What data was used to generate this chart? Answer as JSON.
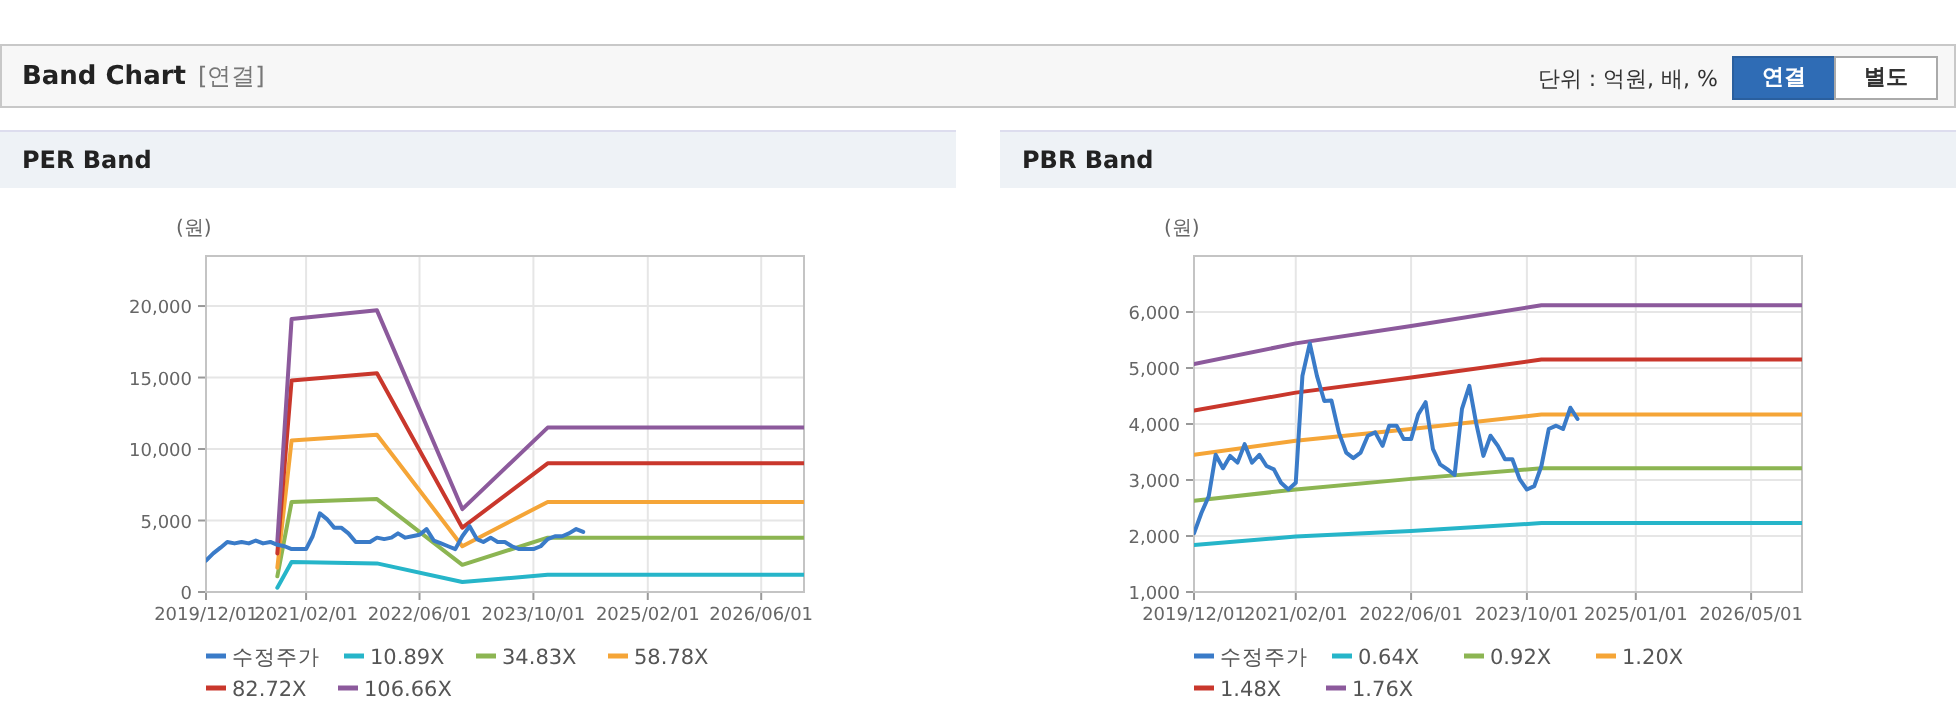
{
  "chart_data": [
    {
      "type": "other",
      "title": "Band Chart",
      "annotations": [
        "[연결]",
        "단위 : 억원, 배, %",
        "연결",
        "별도"
      ]
    },
    {
      "type": "line",
      "title": "PER Band",
      "ylabel": "(원)",
      "grid": true,
      "legend": "bottom",
      "marker": "none",
      "line_style": "solid",
      "xlim": [
        "2019-12-01",
        "2026-12-01"
      ],
      "xticks": [
        {
          "value": "2019-12-01",
          "label": "2019/12/01"
        },
        {
          "value": "2021-02-01",
          "label": "2021/02/01"
        },
        {
          "value": "2022-06-01",
          "label": "2022/06/01"
        },
        {
          "value": "2023-10-01",
          "label": "2023/10/01"
        },
        {
          "value": "2025-02-01",
          "label": "2025/02/01"
        },
        {
          "value": "2026-06-01",
          "label": "2026/06/01"
        }
      ],
      "ylim": [
        0,
        23500
      ],
      "yticks": [
        0,
        {
          "value": 5000,
          "label": "5,000"
        },
        {
          "value": 10000,
          "label": "10,000"
        },
        {
          "value": 15000,
          "label": "15,000"
        },
        {
          "value": 20000,
          "label": "20,000"
        }
      ],
      "x": [
        "2019-12",
        "2020-01",
        "2020-02",
        "2020-03",
        "2020-04",
        "2020-05",
        "2020-06",
        "2020-07",
        "2020-08",
        "2020-09",
        "2020-10",
        "2020-11",
        "2020-12",
        "2021-01",
        "2021-02",
        "2021-03",
        "2021-04",
        "2021-05",
        "2021-06",
        "2021-07",
        "2021-08",
        "2021-09",
        "2021-10",
        "2021-11",
        "2021-12",
        "2022-01",
        "2022-02",
        "2022-03",
        "2022-04",
        "2022-05",
        "2022-06",
        "2022-07",
        "2022-08",
        "2022-09",
        "2022-10",
        "2022-11",
        "2022-12",
        "2023-01",
        "2023-02",
        "2023-03",
        "2023-04",
        "2023-05",
        "2023-06",
        "2023-07",
        "2023-08",
        "2023-09",
        "2023-10",
        "2023-11",
        "2023-12",
        "2024-01",
        "2024-02",
        "2024-03",
        "2024-04",
        "2024-05"
      ],
      "series": [
        {
          "name": "수정주가",
          "color": "#3a7bc8",
          "values": [
            2200,
            2700,
            3100,
            3500,
            3400,
            3500,
            3400,
            3600,
            3400,
            3500,
            3300,
            3200,
            3000,
            3000,
            3000,
            3900,
            5500,
            5100,
            4500,
            4500,
            4100,
            3500,
            3500,
            3500,
            3800,
            3700,
            3800,
            4100,
            3800,
            3900,
            4000,
            4400,
            3600,
            3400,
            3200,
            3000,
            3900,
            4600,
            3700,
            3500,
            3800,
            3500,
            3500,
            3200,
            3000,
            3000,
            3000,
            3200,
            3700,
            3900,
            3900,
            4100,
            4400,
            4200
          ]
        },
        {
          "name": "10.89X",
          "color": "#26b5c9",
          "x": [
            "2020-10",
            "2020-12",
            "2021-12",
            "2022-12",
            "2023-12",
            "2026-12"
          ],
          "values": [
            300,
            2100,
            2000,
            700,
            1200,
            1200
          ]
        },
        {
          "name": "34.83X",
          "color": "#8cb552",
          "x": [
            "2020-10",
            "2020-12",
            "2021-12",
            "2022-12",
            "2023-12",
            "2026-12"
          ],
          "values": [
            1100,
            6300,
            6500,
            1900,
            3800,
            3800
          ]
        },
        {
          "name": "58.78X",
          "color": "#f5a537",
          "x": [
            "2020-10",
            "2020-12",
            "2021-12",
            "2022-12",
            "2023-12",
            "2026-12"
          ],
          "values": [
            1700,
            10600,
            11000,
            3200,
            6300,
            6300
          ]
        },
        {
          "name": "82.72X",
          "color": "#c9372c",
          "x": [
            "2020-10",
            "2020-12",
            "2021-12",
            "2022-12",
            "2023-12",
            "2026-12"
          ],
          "values": [
            2700,
            14800,
            15300,
            4500,
            9000,
            9000
          ]
        },
        {
          "name": "106.66X",
          "color": "#8c5a9c",
          "x": [
            "2020-10",
            "2020-12",
            "2021-12",
            "2022-12",
            "2023-12",
            "2026-12"
          ],
          "values": [
            3500,
            19100,
            19700,
            5800,
            11500,
            11500
          ]
        }
      ]
    },
    {
      "type": "line",
      "title": "PBR Band",
      "ylabel": "(원)",
      "grid": true,
      "legend": "bottom",
      "marker": "none",
      "line_style": "solid",
      "xlim": [
        "2019-12-01",
        "2026-12-01"
      ],
      "xticks": [
        {
          "value": "2019-12-01",
          "label": "2019/12/01"
        },
        {
          "value": "2021-02-01",
          "label": "2021/02/01"
        },
        {
          "value": "2022-06-01",
          "label": "2022/06/01"
        },
        {
          "value": "2023-10-01",
          "label": "2023/10/01"
        },
        {
          "value": "2025-01-01",
          "label": "2025/01/01"
        },
        {
          "value": "2026-05-01",
          "label": "2026/05/01"
        }
      ],
      "ylim": [
        1000,
        7000
      ],
      "yticks": [
        {
          "value": 1000,
          "label": "1,000"
        },
        {
          "value": 2000,
          "label": "2,000"
        },
        {
          "value": 3000,
          "label": "3,000"
        },
        {
          "value": 4000,
          "label": "4,000"
        },
        {
          "value": 5000,
          "label": "5,000"
        },
        {
          "value": 6000,
          "label": "6,000"
        }
      ],
      "x": [
        "2019-12",
        "2020-01",
        "2020-02",
        "2020-03",
        "2020-04",
        "2020-05",
        "2020-06",
        "2020-07",
        "2020-08",
        "2020-09",
        "2020-10",
        "2020-11",
        "2020-12",
        "2021-01",
        "2021-02",
        "2021-03",
        "2021-04",
        "2021-05",
        "2021-06",
        "2021-07",
        "2021-08",
        "2021-09",
        "2021-10",
        "2021-11",
        "2021-12",
        "2022-01",
        "2022-02",
        "2022-03",
        "2022-04",
        "2022-05",
        "2022-06",
        "2022-07",
        "2022-08",
        "2022-09",
        "2022-10",
        "2022-11",
        "2022-12",
        "2023-01",
        "2023-02",
        "2023-03",
        "2023-04",
        "2023-05",
        "2023-06",
        "2023-07",
        "2023-08",
        "2023-09",
        "2023-10",
        "2023-11",
        "2023-12",
        "2024-01",
        "2024-02",
        "2024-03",
        "2024-04",
        "2024-05"
      ],
      "series": [
        {
          "name": "수정주가",
          "color": "#3a7bc8",
          "values": [
            2050,
            2410,
            2710,
            3450,
            3210,
            3430,
            3310,
            3640,
            3310,
            3450,
            3250,
            3190,
            2950,
            2830,
            2950,
            4860,
            5440,
            4860,
            4410,
            4420,
            3850,
            3490,
            3390,
            3490,
            3790,
            3850,
            3610,
            3970,
            3970,
            3730,
            3730,
            4170,
            4390,
            3550,
            3280,
            3190,
            3090,
            4270,
            4680,
            4030,
            3430,
            3790,
            3610,
            3370,
            3370,
            3010,
            2830,
            2890,
            3250,
            3910,
            3970,
            3910,
            4290,
            4090
          ]
        },
        {
          "name": "0.64X",
          "color": "#26b5c9",
          "x": [
            "2019-12",
            "2021-02",
            "2022-06",
            "2023-12",
            "2026-12"
          ],
          "values": [
            1840,
            1990,
            2090,
            2230,
            2230
          ]
        },
        {
          "name": "0.92X",
          "color": "#8cb552",
          "x": [
            "2019-12",
            "2021-02",
            "2022-06",
            "2023-12",
            "2026-12"
          ],
          "values": [
            2630,
            2830,
            3020,
            3210,
            3210
          ]
        },
        {
          "name": "1.20X",
          "color": "#f5a537",
          "x": [
            "2019-12",
            "2021-02",
            "2022-06",
            "2023-12",
            "2026-12"
          ],
          "values": [
            3450,
            3700,
            3910,
            4170,
            4170
          ]
        },
        {
          "name": "1.48X",
          "color": "#c9372c",
          "x": [
            "2019-12",
            "2021-02",
            "2022-06",
            "2023-12",
            "2026-12"
          ],
          "values": [
            4240,
            4560,
            4830,
            5150,
            5150
          ]
        },
        {
          "name": "1.76X",
          "color": "#8c5a9c",
          "x": [
            "2019-12",
            "2021-02",
            "2022-06",
            "2023-12",
            "2026-12"
          ],
          "values": [
            5070,
            5440,
            5750,
            6120,
            6120
          ]
        }
      ]
    }
  ]
}
